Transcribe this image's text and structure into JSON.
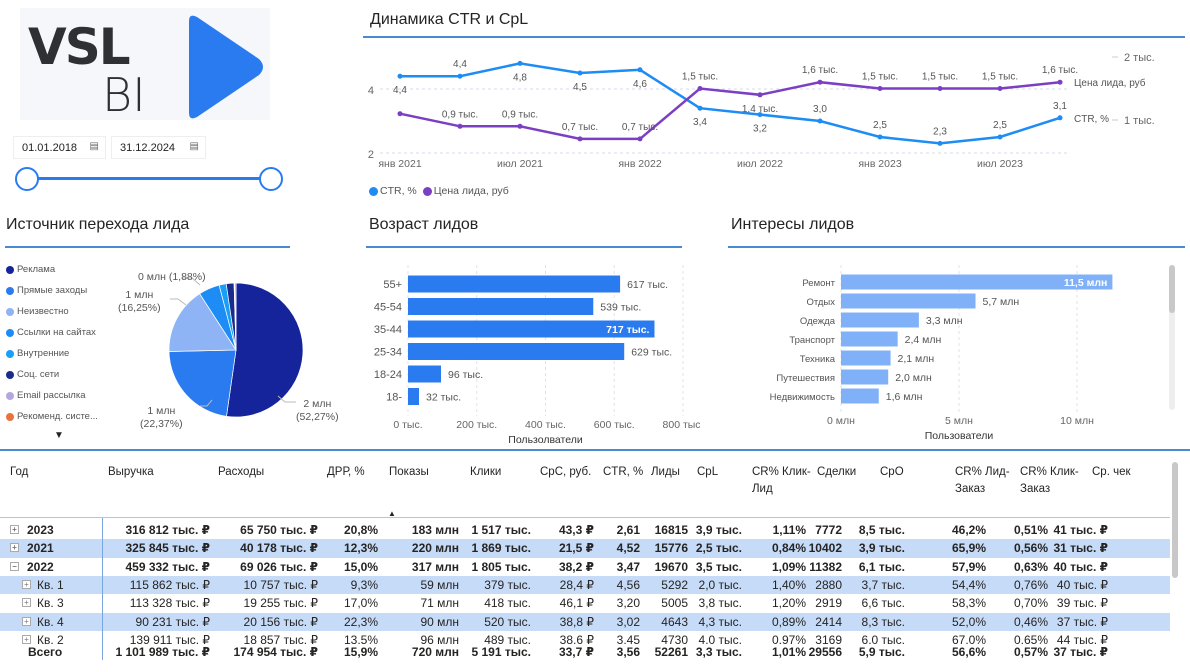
{
  "logo": {
    "text_top": "VSL",
    "text_bottom": "BI",
    "colors": {
      "accent": "#2b7bf0",
      "dark": "#2f3033"
    }
  },
  "filters": {
    "date_from": "01.01.2018",
    "date_to": "31.12.2024",
    "calendar_icon": "calendar-icon",
    "slider_range": [
      "01.01.2018",
      "31.12.2024"
    ]
  },
  "line_chart": {
    "title": "Динамика CTR и CpL",
    "x_ticks": [
      "янв 2021",
      "июл 2021",
      "янв 2022",
      "июл 2022",
      "янв 2023",
      "июл 2023"
    ],
    "left_ticks": [
      "4",
      "2"
    ],
    "right_ticks": [
      "2 тыс.",
      "1 тыс."
    ],
    "series_ctr": {
      "name": "CTR, %",
      "color": "#1e8cf5",
      "values": [
        4.4,
        4.4,
        4.8,
        4.5,
        4.6,
        3.4,
        3.2,
        3.0,
        2.5,
        2.3,
        2.5,
        3.1
      ],
      "labels": [
        "4,4",
        "4,4",
        "4,8",
        "4,5",
        "4,6",
        "3,4",
        "3,2",
        "3,0",
        "2,5",
        "2,3",
        "2,5",
        "3,1"
      ]
    },
    "series_cpl": {
      "name": "Цена лида, руб",
      "color": "#7b3fc4",
      "values": [
        1.1,
        0.9,
        0.9,
        0.7,
        0.7,
        1.5,
        1.4,
        1.6,
        1.5,
        1.5,
        1.5,
        1.6
      ],
      "labels": [
        "",
        "0,9 тыс.",
        "0,9 тыс.",
        "0,7 тыс.",
        "0,7 тыс.",
        "1,5 тыс.",
        "1,4 тыс.",
        "1,6 тыс.",
        "1,5 тыс.",
        "1,5 тыс.",
        "1,5 тыс.",
        "1,6 тыс."
      ]
    },
    "legend": [
      "CTR, %",
      "Цена лида, руб"
    ]
  },
  "pie": {
    "title": "Источник перехода лида",
    "slices": [
      {
        "name": "Реклама",
        "pct": 52.27,
        "color": "#16249c"
      },
      {
        "name": "Прямые заходы",
        "pct": 22.37,
        "color": "#2b7bf0"
      },
      {
        "name": "Неизвестно",
        "pct": 16.25,
        "color": "#8fb4f5"
      },
      {
        "name": "Ссылки на сайтах",
        "pct": 5.07,
        "color": "#1e8cf5"
      },
      {
        "name": "Внутренние",
        "pct": 1.7,
        "color": "#16a0f7"
      },
      {
        "name": "Соц. сети",
        "pct": 1.88,
        "color": "#1b2b8c"
      },
      {
        "name": "Email рассылка",
        "pct": 0.16,
        "color": "#b4a7e0"
      },
      {
        "name": "Рекоменд. систе...",
        "pct": 0.3,
        "color": "#e8743b"
      }
    ],
    "labels": {
      "reklama": [
        "2 млн",
        "(52,27%)"
      ],
      "pryamye": [
        "1 млн",
        "(22,37%)"
      ],
      "neizvestno": [
        "1 млн",
        "(16,25%)"
      ],
      "soc": "0 млн (1,88%)"
    },
    "more_icon": "caret-down-icon"
  },
  "age_chart": {
    "title": "Возраст лидов",
    "categories": [
      "55+",
      "45-54",
      "35-44",
      "25-34",
      "18-24",
      "18-"
    ],
    "values": [
      617,
      539,
      717,
      629,
      96,
      32
    ],
    "labels": [
      "617 тыс.",
      "539 тыс.",
      "717 тыс.",
      "629 тыс.",
      "96 тыс.",
      "32 тыс."
    ],
    "x_ticks": [
      "0 тыс.",
      "200 тыс.",
      "400 тыс.",
      "600 тыс.",
      "800 тыс."
    ],
    "xlim": [
      0,
      800
    ],
    "xlabel": "Пользолватели",
    "color": "#2b7bf0"
  },
  "interests_chart": {
    "title": "Интересы лидов",
    "categories": [
      "Ремонт",
      "Отдых",
      "Одежда",
      "Транспорт",
      "Техника",
      "Путешествия",
      "Недвижимость"
    ],
    "values": [
      11.5,
      5.7,
      3.3,
      2.4,
      2.1,
      2.0,
      1.6
    ],
    "labels": [
      "11,5 млн",
      "5,7 млн",
      "3,3 млн",
      "2,4 млн",
      "2,1 млн",
      "2,0 млн",
      "1,6 млн"
    ],
    "x_ticks": [
      "0 млн",
      "5 млн",
      "10 млн"
    ],
    "xlim": [
      0,
      10
    ],
    "xlabel": "Пользователи",
    "color": "#80b0f8"
  },
  "table": {
    "columns": [
      "Год",
      "Выручка",
      "Расходы",
      "ДРР, %",
      "Показы",
      "Клики",
      "CpC, руб.",
      "CTR, %",
      "Лиды",
      "CpL",
      "CR% Клик-Лид",
      "Сделки",
      "CpO",
      "CR% Лид-Заказ",
      "CR% Клик-Заказ",
      "Ср. чек"
    ],
    "sort_icon": "sort-ascending-icon",
    "rows": [
      {
        "name": "2023",
        "level": 0,
        "expand": "+",
        "cells": [
          "316 812 тыс. ₽",
          "65 750 тыс. ₽",
          "20,8%",
          "183 млн",
          "1 517 тыс.",
          "43,3 ₽",
          "2,61",
          "16815",
          "3,9 тыс.",
          "1,11%",
          "7772",
          "8,5 тыс.",
          "46,2%",
          "0,51%",
          "41 тыс. ₽"
        ]
      },
      {
        "name": "2021",
        "level": 0,
        "expand": "+",
        "cells": [
          "325 845 тыс. ₽",
          "40 178 тыс. ₽",
          "12,3%",
          "220 млн",
          "1 869 тыс.",
          "21,5 ₽",
          "4,52",
          "15776",
          "2,5 тыс.",
          "0,84%",
          "10402",
          "3,9 тыс.",
          "65,9%",
          "0,56%",
          "31 тыс. ₽"
        ]
      },
      {
        "name": "2022",
        "level": 0,
        "expand": "−",
        "cells": [
          "459 332 тыс. ₽",
          "69 026 тыс. ₽",
          "15,0%",
          "317 млн",
          "1 805 тыс.",
          "38,2 ₽",
          "3,47",
          "19670",
          "3,5 тыс.",
          "1,09%",
          "11382",
          "6,1 тыс.",
          "57,9%",
          "0,63%",
          "40 тыс. ₽"
        ]
      },
      {
        "name": "Кв. 1",
        "level": 1,
        "expand": "+",
        "cells": [
          "115 862 тыс. ₽",
          "10 757 тыс. ₽",
          "9,3%",
          "59 млн",
          "379 тыс.",
          "28,4 ₽",
          "4,56",
          "5292",
          "2,0 тыс.",
          "1,40%",
          "2880",
          "3,7 тыс.",
          "54,4%",
          "0,76%",
          "40 тыс. ₽"
        ]
      },
      {
        "name": "Кв. 3",
        "level": 1,
        "expand": "+",
        "cells": [
          "113 328 тыс. ₽",
          "19 255 тыс. ₽",
          "17,0%",
          "71 млн",
          "418 тыс.",
          "46,1 ₽",
          "3,20",
          "5005",
          "3,8 тыс.",
          "1,20%",
          "2919",
          "6,6 тыс.",
          "58,3%",
          "0,70%",
          "39 тыс. ₽"
        ]
      },
      {
        "name": "Кв. 4",
        "level": 1,
        "expand": "+",
        "cells": [
          "90 231 тыс. ₽",
          "20 156 тыс. ₽",
          "22,3%",
          "90 млн",
          "520 тыс.",
          "38,8 ₽",
          "3,02",
          "4643",
          "4,3 тыс.",
          "0,89%",
          "2414",
          "8,3 тыс.",
          "52,0%",
          "0,46%",
          "37 тыс. ₽"
        ]
      },
      {
        "name": "Кв. 2",
        "level": 1,
        "expand": "+",
        "cells": [
          "139 911 тыс. ₽",
          "18 857 тыс. ₽",
          "13,5%",
          "96 млн",
          "489 тыс.",
          "38,6 ₽",
          "3,45",
          "4730",
          "4,0 тыс.",
          "0,97%",
          "3169",
          "6,0 тыс.",
          "67,0%",
          "0,65%",
          "44 тыс. ₽"
        ]
      }
    ],
    "total": {
      "name": "Всего",
      "cells": [
        "1 101 989 тыс. ₽",
        "174 954 тыс. ₽",
        "15,9%",
        "720 млн",
        "5 191 тыс.",
        "33,7 ₽",
        "3,56",
        "52261",
        "3,3 тыс.",
        "1,01%",
        "29556",
        "5,9 тыс.",
        "56,6%",
        "0,57%",
        "37 тыс. ₽"
      ]
    },
    "row_highlight_color": "#c6dbf8"
  }
}
